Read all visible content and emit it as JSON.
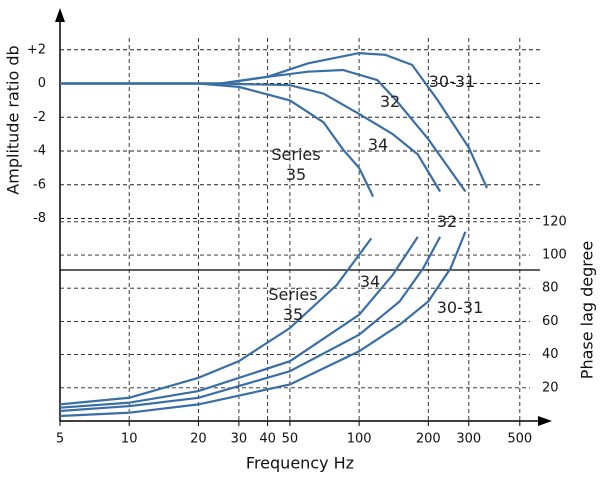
{
  "chart_data": {
    "type": "line",
    "xlabel": "Frequency Hz",
    "ylabel": "Amplitude ratio db",
    "y2label": "Phase lag degree",
    "xscale": "log",
    "grid": true,
    "xlim": [
      5,
      600
    ],
    "xticks": [
      5,
      10,
      20,
      30,
      40,
      50,
      100,
      200,
      300,
      500
    ],
    "ylim": [
      -20,
      4
    ],
    "yticks": [
      {
        "value": 2,
        "label": "+2"
      },
      0,
      -2,
      -4,
      -6,
      -8
    ],
    "y2lim": [
      0,
      244
    ],
    "y2ticks": [
      20,
      40,
      60,
      80,
      100,
      120
    ],
    "series": [
      {
        "name": "30-31",
        "color": "#3a6fa6",
        "x": [
          5,
          10,
          20,
          25,
          40,
          60,
          100,
          130,
          170,
          220,
          300,
          360
        ],
        "values": [
          0,
          0,
          0,
          0,
          0.4,
          1.2,
          1.8,
          1.7,
          1.1,
          -1,
          -3.8,
          -6.2
        ]
      },
      {
        "name": "32",
        "color": "#3a6fa6",
        "x": [
          5,
          25,
          40,
          60,
          85,
          120,
          145,
          200,
          290
        ],
        "values": [
          0,
          0,
          0.4,
          0.7,
          0.8,
          0.2,
          -1,
          -3.3,
          -6.4
        ]
      },
      {
        "name": "34",
        "color": "#3a6fa6",
        "x": [
          5,
          25,
          50,
          70,
          100,
          140,
          180,
          225
        ],
        "values": [
          0,
          0,
          -0.1,
          -0.6,
          -1.8,
          -3,
          -4.2,
          -6.4
        ]
      },
      {
        "name": "Series 35",
        "color": "#3a6fa6",
        "x": [
          5,
          20,
          30,
          50,
          70,
          85,
          100,
          115
        ],
        "values": [
          0,
          0,
          -0.2,
          -1,
          -2.3,
          -3.9,
          -5,
          -6.7
        ]
      },
      {
        "name": "30-31",
        "color": "#3a6fa6",
        "axis": "y2",
        "x": [
          5,
          10,
          20,
          50,
          100,
          150,
          200,
          250,
          290
        ],
        "values": [
          3,
          5,
          10,
          22,
          42,
          58,
          72,
          92,
          114
        ]
      },
      {
        "name": "32",
        "color": "#3a6fa6",
        "axis": "y2",
        "x": [
          5,
          10,
          20,
          50,
          100,
          150,
          190,
          225
        ],
        "values": [
          6,
          9,
          14,
          30,
          52,
          72,
          92,
          111
        ]
      },
      {
        "name": "34",
        "color": "#3a6fa6",
        "axis": "y2",
        "x": [
          5,
          10,
          20,
          50,
          100,
          140,
          180
        ],
        "values": [
          8,
          11,
          18,
          36,
          64,
          88,
          111
        ]
      },
      {
        "name": "Series 35",
        "color": "#3a6fa6",
        "axis": "y2",
        "x": [
          5,
          10,
          20,
          30,
          50,
          80,
          113
        ],
        "values": [
          10,
          14,
          26,
          36,
          56,
          82,
          110
        ]
      }
    ]
  }
}
